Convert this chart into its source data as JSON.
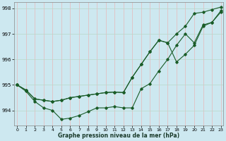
{
  "xlabel": "Graphe pression niveau de la mer (hPa)",
  "background_color": "#cde8f0",
  "grid_color_v": "#e8b8b8",
  "grid_color_h": "#b8d8c8",
  "line_color": "#1a5c28",
  "x_ticks": [
    0,
    1,
    2,
    3,
    4,
    5,
    6,
    7,
    8,
    9,
    10,
    11,
    12,
    13,
    14,
    15,
    16,
    17,
    18,
    19,
    20,
    21,
    22,
    23
  ],
  "y_ticks": [
    994,
    995,
    996,
    997,
    998
  ],
  "ylim": [
    993.4,
    998.25
  ],
  "xlim": [
    -0.3,
    23.3
  ],
  "series": [
    [
      995.0,
      994.8,
      994.45,
      994.4,
      994.35,
      994.4,
      994.5,
      994.55,
      994.6,
      994.65,
      994.7,
      994.72,
      994.7,
      995.3,
      995.8,
      996.3,
      996.75,
      996.65,
      997.0,
      997.3,
      997.8,
      997.85,
      997.95,
      998.05
    ],
    [
      995.0,
      994.8,
      994.45,
      994.4,
      994.35,
      994.4,
      994.5,
      994.55,
      994.6,
      994.65,
      994.7,
      994.72,
      994.7,
      995.3,
      995.8,
      996.3,
      996.75,
      996.65,
      995.9,
      996.2,
      996.55,
      997.3,
      997.45,
      997.9
    ],
    [
      995.0,
      994.75,
      994.35,
      994.1,
      994.0,
      993.65,
      993.7,
      993.8,
      993.95,
      994.1,
      994.1,
      994.15,
      994.1,
      994.1,
      994.85,
      995.05,
      995.55,
      996.0,
      996.55,
      997.0,
      996.65,
      997.35,
      997.45,
      997.85
    ]
  ]
}
